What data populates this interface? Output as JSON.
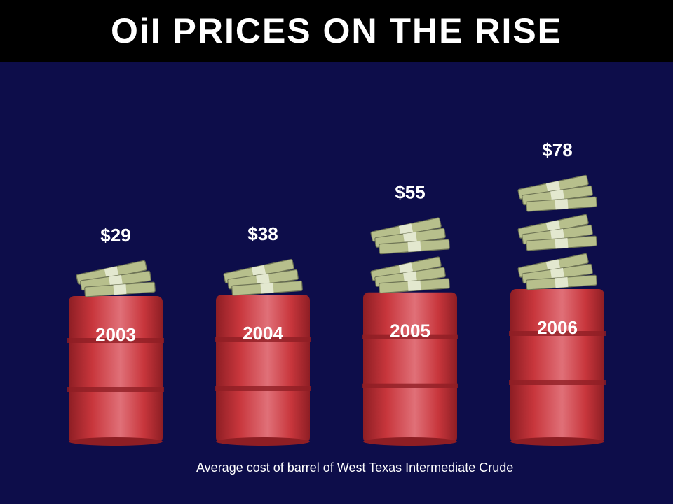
{
  "title": "OiI PRICES ON THE RISE",
  "caption": "Average cost of  barrel of West Texas Intermediate Crude",
  "colors": {
    "background": "#0d0d4a",
    "title_bar": "#000000",
    "barrel": "#c8363c",
    "barrel_dark": "#8e1e24",
    "barrel_light": "#e07078",
    "money": "#b7bf8c",
    "money_dark": "#6f7556",
    "text": "#ffffff"
  },
  "chart_data": {
    "type": "bar",
    "categories": [
      "2003",
      "2004",
      "2005",
      "2006"
    ],
    "values": [
      29,
      38,
      55,
      78
    ],
    "value_labels": [
      "$29",
      "$38",
      "$55",
      "$78"
    ],
    "money_stacks": [
      1,
      1,
      2,
      3
    ]
  }
}
